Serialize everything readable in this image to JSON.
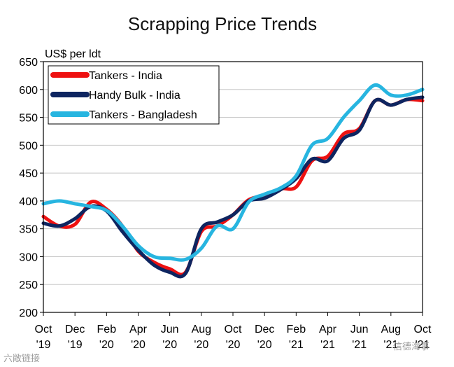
{
  "chart_data": {
    "type": "line",
    "title": "Scrapping Price Trends",
    "ylabel": "US$ per ldt",
    "ylim": [
      200,
      650
    ],
    "yticks": [
      200,
      250,
      300,
      350,
      400,
      450,
      500,
      550,
      600,
      650
    ],
    "grid": true,
    "legend_position": "top-left",
    "x_tick_labels": [
      [
        "Oct",
        "'19"
      ],
      [
        "Dec",
        "'19"
      ],
      [
        "Feb",
        "'20"
      ],
      [
        "Apr",
        "'20"
      ],
      [
        "Jun",
        "'20"
      ],
      [
        "Aug",
        "'20"
      ],
      [
        "Oct",
        "'20"
      ],
      [
        "Dec",
        "'20"
      ],
      [
        "Feb",
        "'21"
      ],
      [
        "Apr",
        "'21"
      ],
      [
        "Jun",
        "'21"
      ],
      [
        "Aug",
        "'21"
      ],
      [
        "Oct",
        "'21"
      ]
    ],
    "x_label_positions": [
      "2019-10",
      "2019-12",
      "2020-02",
      "2020-04",
      "2020-06",
      "2020-08",
      "2020-10",
      "2020-12",
      "2021-02",
      "2021-04",
      "2021-06",
      "2021-08",
      "2021-10"
    ],
    "x": [
      "2019-10",
      "2019-11",
      "2019-12",
      "2020-01",
      "2020-02",
      "2020-03",
      "2020-04",
      "2020-05",
      "2020-06",
      "2020-07",
      "2020-08",
      "2020-09",
      "2020-10",
      "2020-11",
      "2020-12",
      "2021-01",
      "2021-02",
      "2021-03",
      "2021-04",
      "2021-05",
      "2021-06",
      "2021-07",
      "2021-08",
      "2021-09",
      "2021-10"
    ],
    "series": [
      {
        "name": "Tankers - India",
        "color": "#ee1111",
        "values": [
          372,
          355,
          358,
          398,
          385,
          355,
          310,
          290,
          278,
          272,
          345,
          355,
          375,
          402,
          410,
          422,
          425,
          472,
          480,
          520,
          530,
          580,
          572,
          582,
          580
        ]
      },
      {
        "name": "Handy Bulk - India",
        "color": "#0e2560",
        "values": [
          360,
          355,
          368,
          390,
          382,
          345,
          312,
          285,
          272,
          270,
          350,
          362,
          375,
          400,
          405,
          420,
          440,
          475,
          472,
          512,
          527,
          580,
          572,
          582,
          586
        ]
      },
      {
        "name": "Tankers - Bangladesh",
        "color": "#27b5e0",
        "values": [
          395,
          400,
          395,
          390,
          383,
          355,
          320,
          300,
          297,
          295,
          315,
          355,
          350,
          398,
          412,
          423,
          445,
          500,
          512,
          550,
          580,
          608,
          590,
          590,
          600
        ]
      }
    ]
  },
  "watermark": {
    "left": "六敞链接",
    "right": "信德海事"
  }
}
